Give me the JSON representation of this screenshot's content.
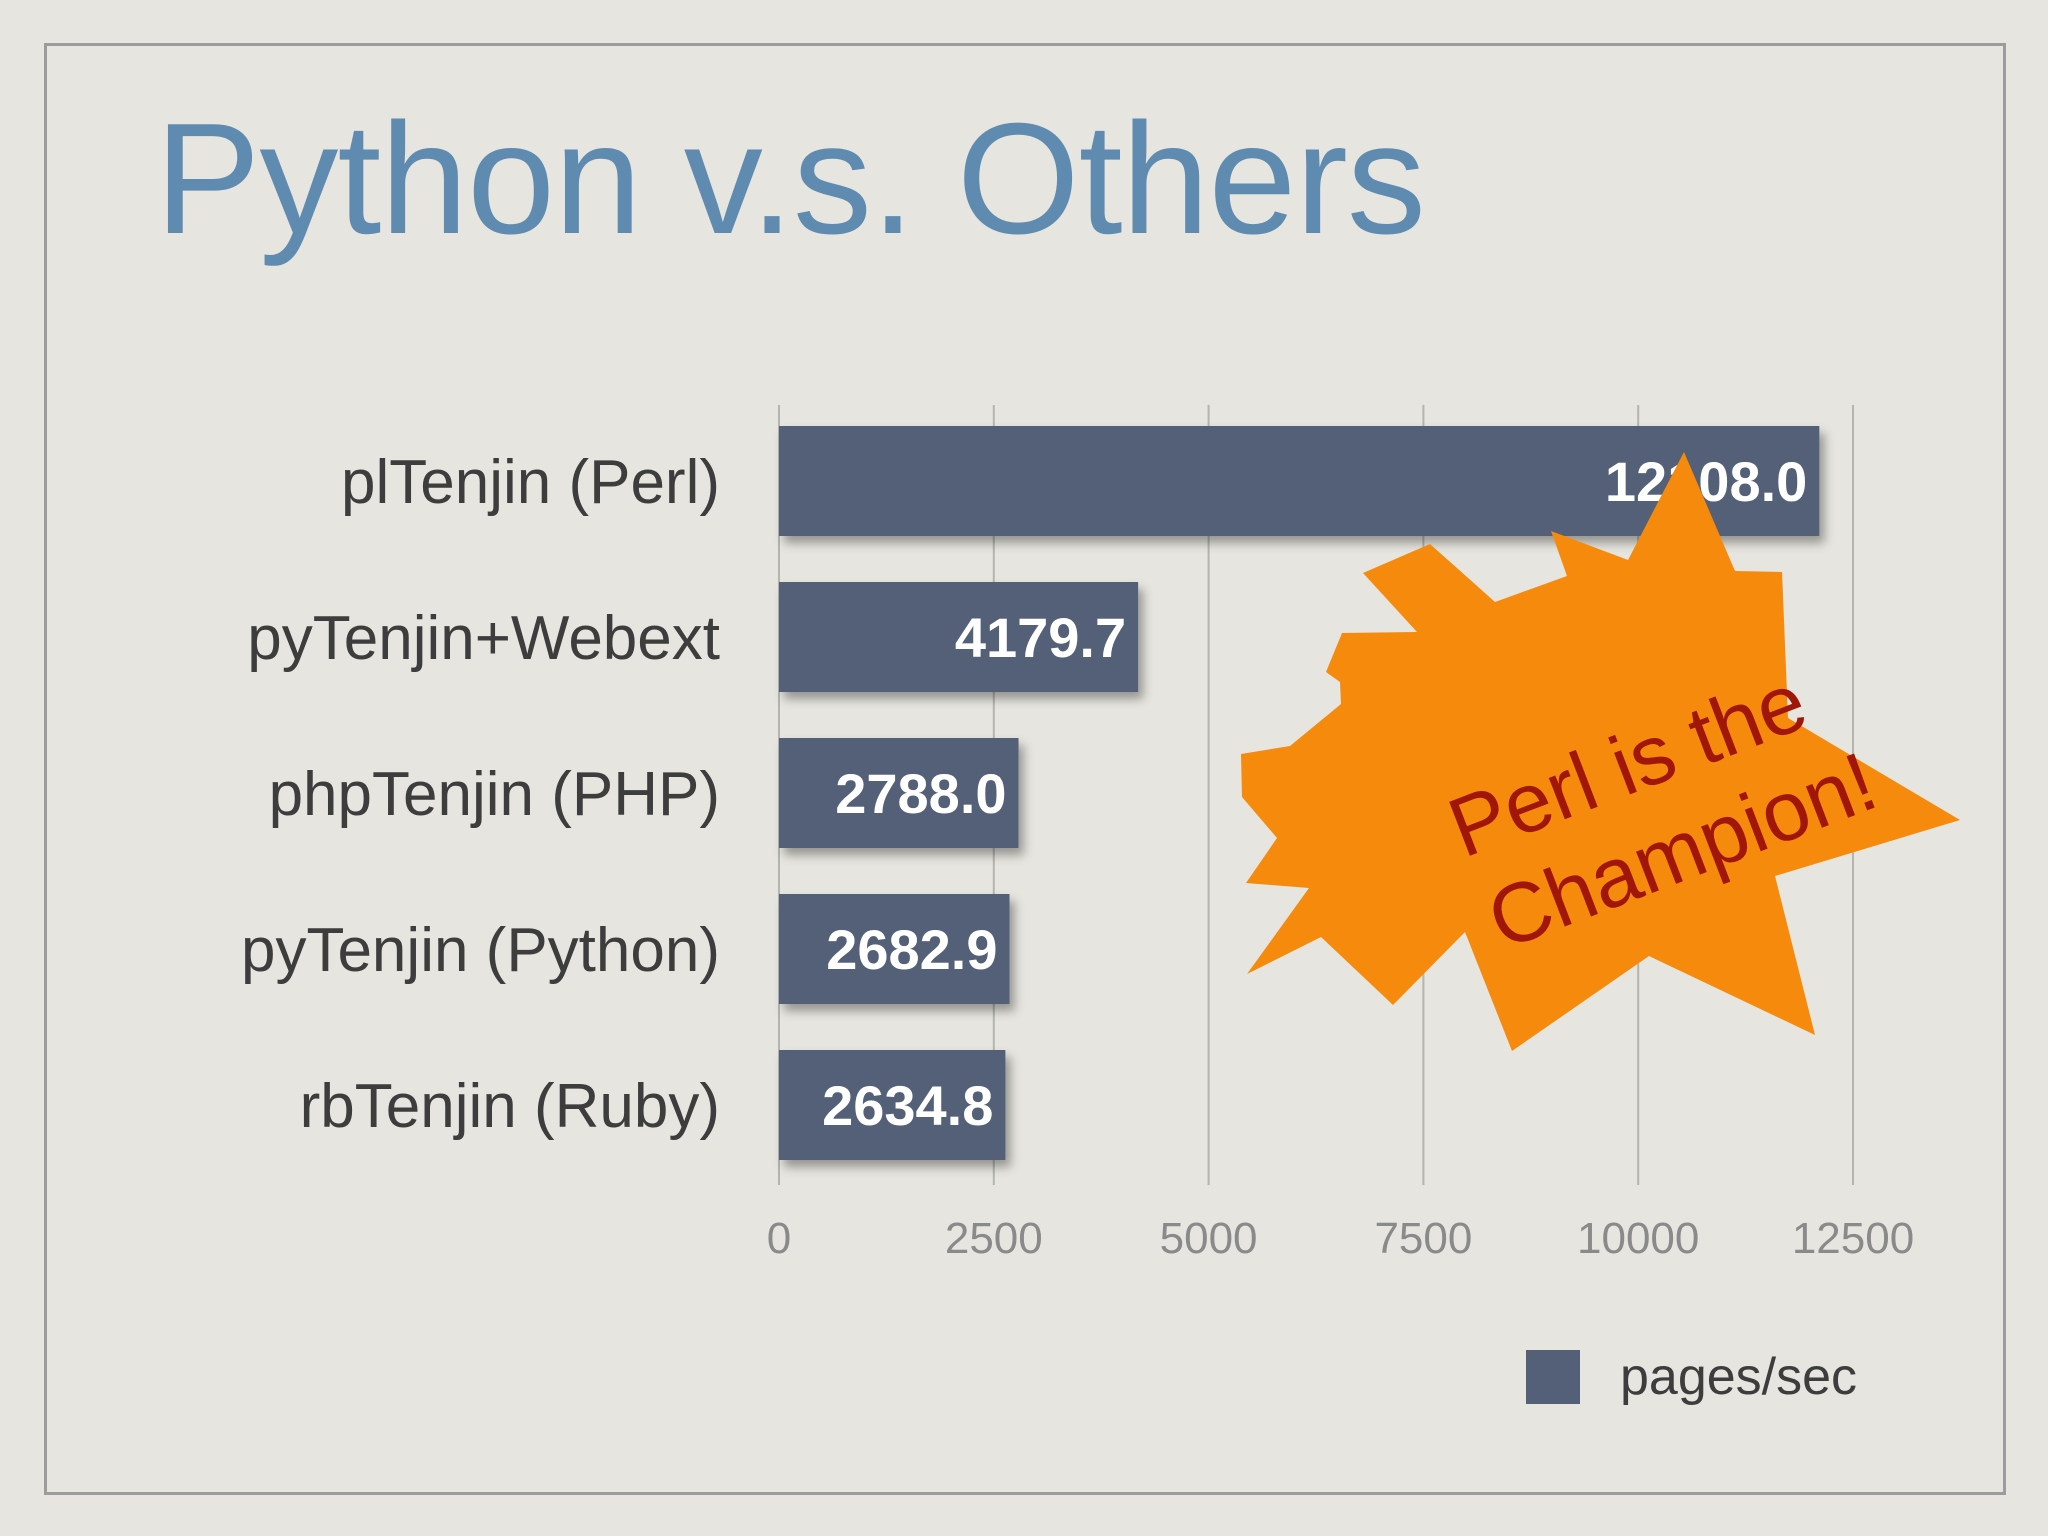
{
  "slide": {
    "title": "Python v.s. Others",
    "callout": {
      "line1": "Perl is the",
      "line2": "Champion!"
    }
  },
  "colors": {
    "bar": "#536078",
    "background": "#e6e5df",
    "title": "#5f8bb0",
    "burst_fill": "#f68a0c",
    "burst_text": "#a01608"
  },
  "chart_data": {
    "type": "bar",
    "orientation": "horizontal",
    "categories": [
      "plTenjin (Perl)",
      "pyTenjin+Webext",
      "phpTenjin (PHP)",
      "pyTenjin (Python)",
      "rbTenjin (Ruby)"
    ],
    "series": [
      {
        "name": "pages/sec",
        "values": [
          12108.0,
          4179.7,
          2788.0,
          2682.9,
          2634.8
        ]
      }
    ],
    "value_labels": [
      "12108.0",
      "4179.7",
      "2788.0",
      "2682.9",
      "2634.8"
    ],
    "xlim": [
      0,
      12500
    ],
    "xticks": [
      "0",
      "2500",
      "5000",
      "7500",
      "10000",
      "12500"
    ],
    "grid": "vertical",
    "legend": "bottom-right"
  }
}
